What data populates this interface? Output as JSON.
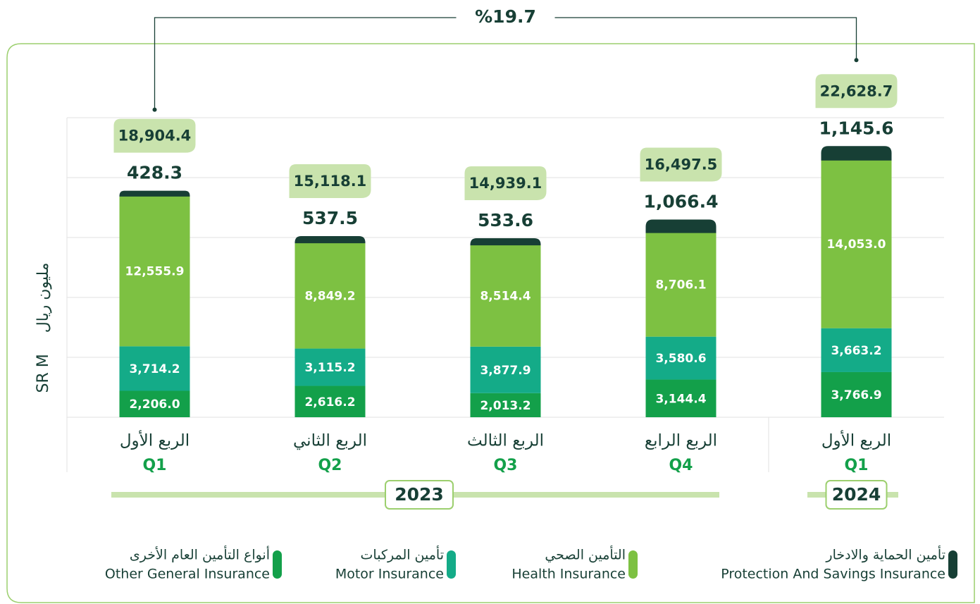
{
  "chart_data": {
    "type": "stacked_bar",
    "y_label": "SR M",
    "y_label_ar": "مليون ريال",
    "categories": [
      "Q1",
      "Q2",
      "Q3",
      "Q4",
      "Q1"
    ],
    "categories_ar": [
      "الربع الأول",
      "الربع الثاني",
      "الربع الثالث",
      "الربع الرابع",
      "الربع الأول"
    ],
    "groups": [
      {
        "label": "2023",
        "count": 4
      },
      {
        "label": "2024",
        "count": 1
      }
    ],
    "series": [
      {
        "name": "Other General Insurance",
        "name_ar": "أنواع التأمين العام الأخرى",
        "color": "#13a04a",
        "values": [
          2206.0,
          2616.2,
          2013.2,
          3144.4,
          3766.9
        ],
        "value_labels": [
          "2,206.0",
          "2,616.2",
          "2,013.2",
          "3,144.4",
          "3,766.9"
        ]
      },
      {
        "name": "Motor Insurance",
        "name_ar": "تأمين المركبات",
        "color": "#14ab88",
        "values": [
          3714.2,
          3115.2,
          3877.9,
          3580.6,
          3663.2
        ],
        "value_labels": [
          "3,714.2",
          "3,115.2",
          "3,877.9",
          "3,580.6",
          "3,663.2"
        ]
      },
      {
        "name": "Health Insurance",
        "name_ar": "التأمين الصحي",
        "color": "#7dc142",
        "values": [
          12555.9,
          8849.2,
          8514.4,
          8706.1,
          14053.0
        ],
        "value_labels": [
          "12,555.9",
          "8,849.2",
          "8,514.4",
          "8,706.1",
          "14,053.0"
        ]
      },
      {
        "name": "Protection And Savings Insurance",
        "name_ar": "تأمين الحماية والادخار",
        "color": "#173f35",
        "values": [
          428.3,
          537.5,
          533.6,
          1066.4,
          1145.6
        ],
        "value_labels": [
          "428.3",
          "537.5",
          "533.6",
          "1,066.4",
          "1,145.6"
        ]
      }
    ],
    "totals": [
      18904.4,
      15118.1,
      14939.1,
      16497.5,
      22628.7
    ],
    "total_labels": [
      "18,904.4",
      "15,118.1",
      "14,939.1",
      "16,497.5",
      "22,628.7"
    ],
    "growth": {
      "value": 19.7,
      "label": "%19.7"
    },
    "ylim": [
      0,
      25000
    ],
    "yticks": [
      0,
      5000,
      10000,
      15000,
      20000,
      25000
    ],
    "grid": true
  }
}
